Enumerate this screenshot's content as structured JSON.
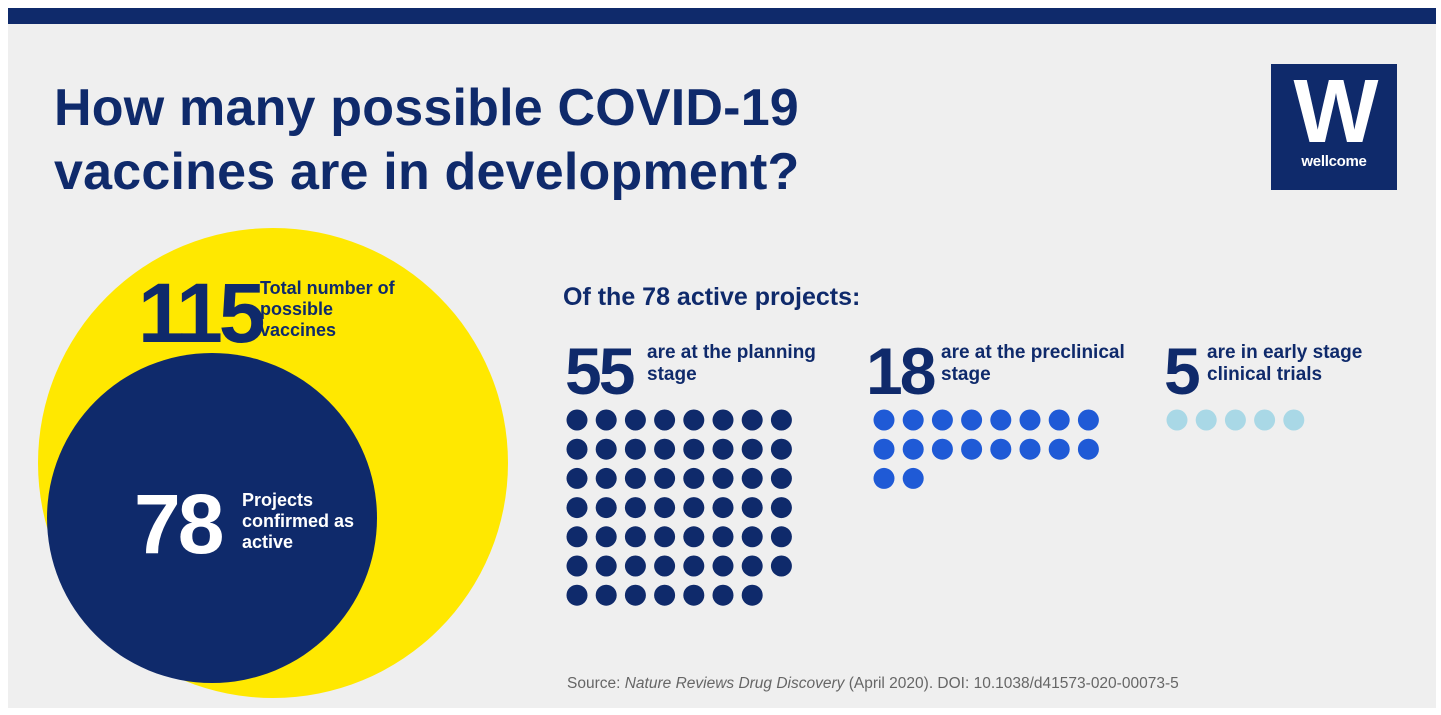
{
  "header": {
    "title_line1": "How many possible COVID-19",
    "title_line2": "vaccines are in development?"
  },
  "logo": {
    "mark": "W",
    "text": "wellcome"
  },
  "colors": {
    "navy": "#0f2a6b",
    "yellow": "#ffe800",
    "blue": "#1f5ad6",
    "light_blue": "#a9d8e6",
    "background": "#efefef"
  },
  "chart_data": {
    "type": "dot-matrix",
    "total": {
      "value": "115",
      "label": "Total number of possible vaccines"
    },
    "active": {
      "value": "78",
      "label": "Projects confirmed as active"
    },
    "subtitle": "Of the 78 active projects:",
    "groups": [
      {
        "value": 55,
        "number_text": "55",
        "label": "are at the planning stage",
        "color": "#0f2a6b",
        "dots_per_row": 8
      },
      {
        "value": 18,
        "number_text": "18",
        "label": "are at the preclinical stage",
        "color": "#1f5ad6",
        "dots_per_row": 8
      },
      {
        "value": 5,
        "number_text": "5",
        "label": "are in early stage clinical trials",
        "color": "#a9d8e6",
        "dots_per_row": 6
      }
    ]
  },
  "source": {
    "prefix": "Source: ",
    "publication": "Nature Reviews Drug Discovery",
    "suffix": " (April 2020). DOI: 10.1038/d41573-020-00073-5"
  }
}
